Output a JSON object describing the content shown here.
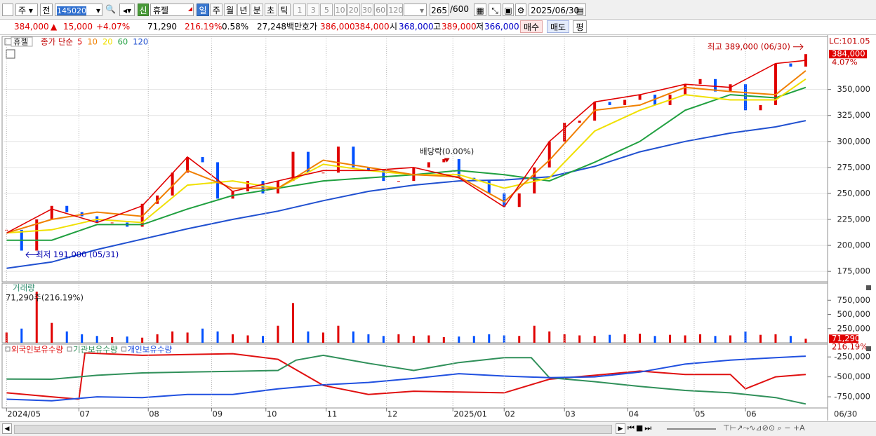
{
  "toolbar": {
    "period": "주",
    "prev": "전",
    "code": "145020",
    "name": "휴젤",
    "badge": "신",
    "tabs": [
      "일",
      "주",
      "월",
      "년",
      "분",
      "초",
      "틱"
    ],
    "counts": [
      "1",
      "3",
      "5",
      "10",
      "20",
      "30",
      "60",
      "120"
    ],
    "view_count": "265",
    "max_count": "/600",
    "date": "2025/06/30"
  },
  "quote": {
    "price": "384,000",
    "arrow": "▲",
    "change": "15,000",
    "change_pct": "+4.07%",
    "volume": "71,290",
    "volume_pct": "216.19%",
    "turnover": "0.58%",
    "amount": "27,248백만",
    "ask_label": "호가",
    "ask": "386,000",
    "bid": "384,000",
    "open_label": "시",
    "open": "368,000",
    "high_label": "고",
    "high": "389,000",
    "low_label": "저",
    "low": "366,000",
    "buy": "매수",
    "sell": "매도",
    "avg": "평"
  },
  "chart_data": [
    {
      "type": "candlestick",
      "title": "휴젤",
      "legend_title": "종가 단순",
      "up_color": "#e00000",
      "down_color": "#0050ff",
      "xlim": [
        -1,
        272
      ],
      "ylim": [
        165000,
        401000
      ],
      "yticks": [
        {
          "value": 175000,
          "label": "175,000"
        },
        {
          "value": 200000,
          "label": "200,000"
        },
        {
          "value": 225000,
          "label": "225,000"
        },
        {
          "value": 250000,
          "label": "250,000"
        },
        {
          "value": 275000,
          "label": "275,000"
        },
        {
          "value": 300000,
          "label": "300,000"
        },
        {
          "value": 325000,
          "label": "325,000"
        },
        {
          "value": 350000,
          "label": "350,000"
        }
      ],
      "grid": true,
      "x": [
        0,
        5,
        10,
        15,
        20,
        25,
        30,
        35,
        40,
        45,
        50,
        55,
        60,
        65,
        70,
        75,
        80,
        85,
        90,
        95,
        100,
        105,
        110,
        115,
        120,
        125,
        130,
        135,
        140,
        145,
        150,
        155,
        160,
        165,
        170,
        175,
        180,
        185,
        190,
        195,
        200,
        205,
        210,
        215,
        220,
        225,
        230,
        235,
        240,
        245,
        250,
        255,
        260,
        265
      ],
      "values": [
        215000,
        195000,
        225000,
        238000,
        232000,
        228000,
        222000,
        222000,
        218000,
        240000,
        248000,
        270000,
        285000,
        280000,
        245000,
        252000,
        262000,
        250000,
        262000,
        290000,
        270000,
        270000,
        295000,
        275000,
        272000,
        262000,
        262000,
        275000,
        280000,
        283000,
        265000,
        262000,
        250000,
        237000,
        250000,
        275000,
        300000,
        318000,
        320000,
        338000,
        335000,
        340000,
        345000,
        335000,
        345000,
        355000,
        360000,
        348000,
        355000,
        330000,
        335000,
        375000,
        372000,
        384000
      ],
      "series": [
        {
          "name": "5",
          "color": "#e00000",
          "x": [
            0,
            15,
            30,
            45,
            60,
            75,
            90,
            105,
            120,
            135,
            150,
            165,
            180,
            195,
            210,
            225,
            240,
            255,
            265
          ],
          "values": [
            212000,
            235000,
            222000,
            238000,
            285000,
            252000,
            262000,
            272000,
            272000,
            275000,
            265000,
            237000,
            300000,
            338000,
            345000,
            355000,
            352000,
            375000,
            378000
          ]
        },
        {
          "name": "10",
          "color": "#f08000",
          "x": [
            0,
            15,
            30,
            45,
            60,
            75,
            90,
            105,
            120,
            135,
            150,
            165,
            180,
            195,
            210,
            225,
            240,
            255,
            265
          ],
          "values": [
            212000,
            225000,
            232000,
            228000,
            272000,
            255000,
            255000,
            282000,
            275000,
            268000,
            266000,
            242000,
            282000,
            330000,
            335000,
            352000,
            348000,
            345000,
            368000
          ]
        },
        {
          "name": "20",
          "color": "#f0e000",
          "x": [
            0,
            15,
            30,
            45,
            60,
            75,
            90,
            105,
            120,
            135,
            150,
            165,
            180,
            195,
            210,
            225,
            240,
            255,
            265
          ],
          "values": [
            212000,
            215000,
            225000,
            222000,
            258000,
            262000,
            255000,
            278000,
            272000,
            268000,
            268000,
            255000,
            265000,
            310000,
            330000,
            345000,
            340000,
            340000,
            360000
          ]
        },
        {
          "name": "60",
          "color": "#20a040",
          "x": [
            0,
            15,
            30,
            45,
            60,
            75,
            90,
            105,
            120,
            135,
            150,
            165,
            180,
            195,
            210,
            225,
            240,
            255,
            265
          ],
          "values": [
            205000,
            205000,
            220000,
            220000,
            235000,
            248000,
            255000,
            262000,
            265000,
            268000,
            272000,
            268000,
            262000,
            280000,
            300000,
            330000,
            345000,
            342000,
            352000
          ]
        },
        {
          "name": "120",
          "color": "#2050d0",
          "x": [
            0,
            15,
            30,
            45,
            60,
            75,
            90,
            105,
            120,
            135,
            150,
            165,
            180,
            195,
            210,
            225,
            240,
            255,
            265
          ],
          "values": [
            178000,
            184000,
            196000,
            206000,
            216000,
            225000,
            233000,
            243000,
            252000,
            258000,
            262000,
            263000,
            266000,
            276000,
            290000,
            300000,
            308000,
            314000,
            320000
          ]
        }
      ],
      "annotations": [
        {
          "text": "최고 389,000 (06/30)",
          "x": 265,
          "y": 389000
        },
        {
          "text": "최저 191,000 (05/31)",
          "x": 6,
          "y": 191000
        },
        {
          "text": "배당락(0.00%)",
          "x": 146,
          "y": 290000
        }
      ],
      "lc_label": "LC:101.05",
      "price_tag": {
        "value": 384000,
        "label": "384,000"
      },
      "pct_label": "4.07%"
    },
    {
      "type": "bar",
      "title": "거래량",
      "subtitle": "71,290주(216.19%)",
      "xlim": [
        -1,
        272
      ],
      "ylim": [
        0,
        1050000
      ],
      "yticks": [
        {
          "value": 250000,
          "label": "250,000"
        },
        {
          "value": 500000,
          "label": "500,000"
        },
        {
          "value": 750000,
          "label": "750,000"
        }
      ],
      "x": [
        0,
        5,
        10,
        15,
        20,
        25,
        30,
        35,
        40,
        45,
        50,
        55,
        60,
        65,
        70,
        75,
        80,
        85,
        90,
        95,
        100,
        105,
        110,
        115,
        120,
        125,
        130,
        135,
        140,
        145,
        150,
        155,
        160,
        165,
        170,
        175,
        180,
        185,
        190,
        195,
        200,
        205,
        210,
        215,
        220,
        225,
        230,
        235,
        240,
        245,
        250,
        255,
        260,
        265
      ],
      "values": [
        180000,
        250000,
        900000,
        350000,
        200000,
        150000,
        120000,
        100000,
        110000,
        90000,
        150000,
        200000,
        180000,
        250000,
        200000,
        150000,
        130000,
        120000,
        300000,
        700000,
        200000,
        180000,
        300000,
        200000,
        150000,
        120000,
        150000,
        120000,
        130000,
        100000,
        110000,
        120000,
        150000,
        130000,
        120000,
        300000,
        200000,
        150000,
        130000,
        120000,
        140000,
        150000,
        160000,
        120000,
        140000,
        130000,
        150000,
        120000,
        130000,
        200000,
        140000,
        150000,
        120000,
        71290
      ],
      "last_tag": {
        "value": 71290,
        "label": "71,290"
      },
      "last_pct": "216.19%"
    },
    {
      "type": "line",
      "xlim": [
        -1,
        272
      ],
      "ylim": [
        -890000,
        -90000
      ],
      "yticks": [
        {
          "value": -250000,
          "label": "-250,000"
        },
        {
          "value": -500000,
          "label": "-500,000"
        },
        {
          "value": -750000,
          "label": "-750,000"
        }
      ],
      "xticks": [
        {
          "value": 0,
          "label": "2024/05"
        },
        {
          "value": 24,
          "label": "07"
        },
        {
          "value": 47,
          "label": "08"
        },
        {
          "value": 68,
          "label": "09"
        },
        {
          "value": 86,
          "label": "10"
        },
        {
          "value": 106,
          "label": "11"
        },
        {
          "value": 126,
          "label": "12"
        },
        {
          "value": 148,
          "label": "2025/01"
        },
        {
          "value": 165,
          "label": "02"
        },
        {
          "value": 185,
          "label": "03"
        },
        {
          "value": 206,
          "label": "04"
        },
        {
          "value": 228,
          "label": "05"
        },
        {
          "value": 245,
          "label": "06"
        }
      ],
      "last_date": "06/30",
      "series": [
        {
          "name": "외국인보유수량",
          "color": "#e01010",
          "x": [
            0,
            15,
            24,
            26,
            45,
            60,
            75,
            90,
            105,
            120,
            135,
            150,
            165,
            180,
            195,
            210,
            225,
            240,
            245,
            255,
            265
          ],
          "values": [
            -700000,
            -750000,
            -780000,
            -200000,
            -230000,
            -220000,
            -210000,
            -280000,
            -607000,
            -720000,
            -680000,
            -690000,
            -700000,
            -530000,
            -480000,
            -428000,
            -470000,
            -470000,
            -650000,
            -500000,
            -470000
          ]
        },
        {
          "name": "기관보유수량",
          "color": "#30905a",
          "x": [
            0,
            15,
            30,
            45,
            60,
            75,
            90,
            96,
            105,
            120,
            135,
            150,
            165,
            174,
            180,
            195,
            210,
            225,
            240,
            255,
            265
          ],
          "values": [
            -527000,
            -530000,
            -480000,
            -450000,
            -440000,
            -430000,
            -420000,
            -290000,
            -230000,
            -330000,
            -420000,
            -320000,
            -260000,
            -260000,
            -510000,
            -560000,
            -620000,
            -670000,
            -700000,
            -760000,
            -840000
          ]
        },
        {
          "name": "개인보유수량",
          "color": "#2050e0",
          "x": [
            0,
            15,
            30,
            45,
            60,
            75,
            90,
            105,
            120,
            135,
            150,
            165,
            180,
            195,
            210,
            225,
            240,
            255,
            265
          ],
          "values": [
            -780000,
            -800000,
            -750000,
            -760000,
            -720000,
            -720000,
            -650000,
            -600000,
            -570000,
            -520000,
            -460000,
            -490000,
            -510000,
            -500000,
            -440000,
            -340000,
            -290000,
            -260000,
            -240000
          ]
        }
      ]
    }
  ]
}
